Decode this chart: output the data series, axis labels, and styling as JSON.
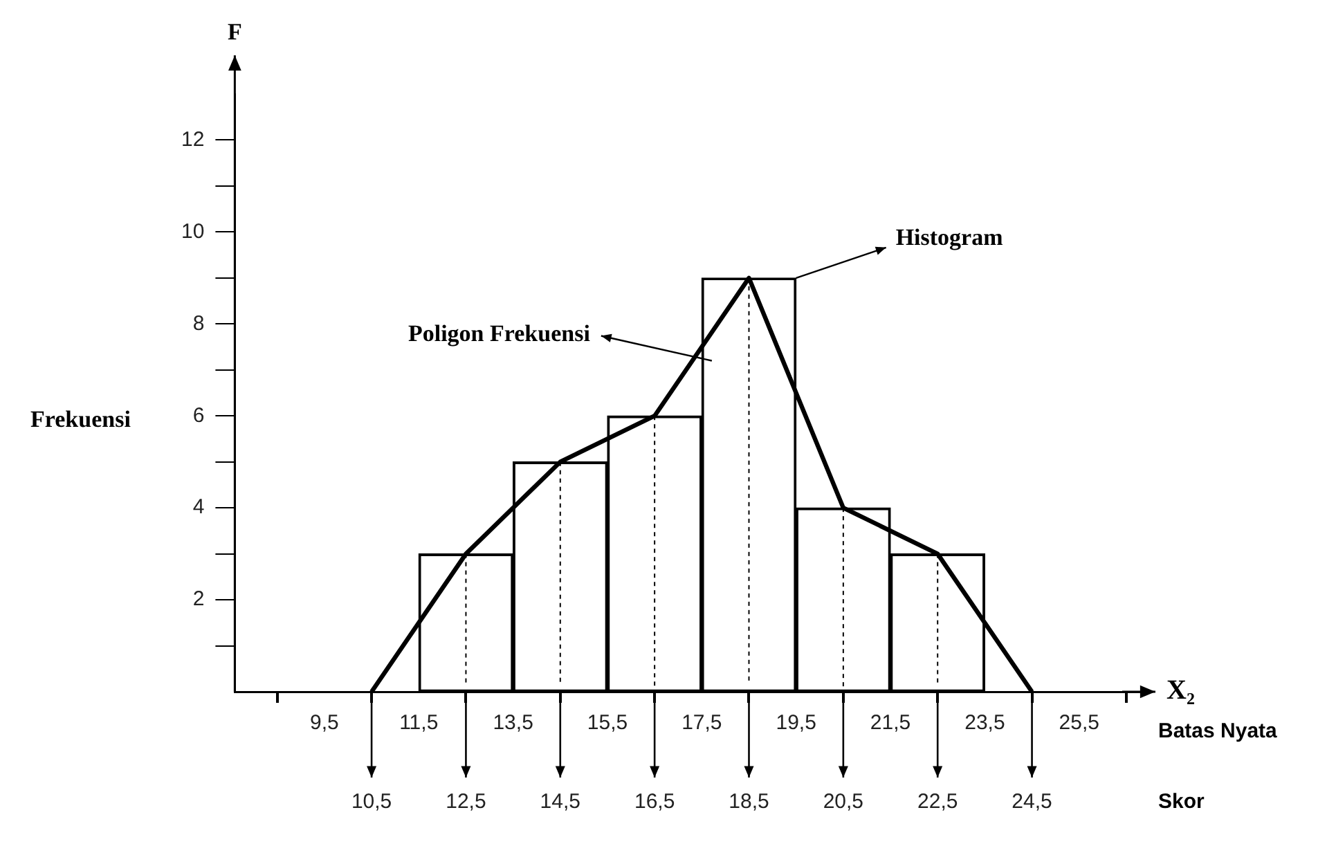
{
  "chart_data": {
    "type": "bar",
    "ylabel": "Frekuensi",
    "xlabel": "X₂",
    "annotations": [
      "F",
      "Batas Nyata",
      "Skor",
      {
        "text": "Histogram",
        "x": 19.5,
        "y": 9
      },
      {
        "text": "10,5",
        "x": 10.5,
        "y": 0
      },
      {
        "text": "12,5",
        "x": 12.5,
        "y": 0
      },
      {
        "text": "14,5",
        "x": 14.5,
        "y": 0
      },
      {
        "text": "16,5",
        "x": 16.5,
        "y": 0
      },
      {
        "text": "18,5",
        "x": 18.5,
        "y": 0
      },
      {
        "text": "20,5",
        "x": 20.5,
        "y": 0
      },
      {
        "text": "22,5",
        "x": 22.5,
        "y": 0
      },
      {
        "text": "24,5",
        "x": 24.5,
        "y": 0
      }
    ],
    "series": [
      {
        "color": "#000000",
        "x": [
          12.5,
          14.5,
          16.5,
          18.5,
          20.5,
          22.5
        ],
        "values": [
          3,
          5,
          6,
          9,
          4,
          3
        ]
      },
      {
        "type": "line",
        "name": "Poligon Frekuensi",
        "color": "#000000",
        "x": [
          10.5,
          12.5,
          14.5,
          16.5,
          18.5,
          20.5,
          22.5,
          24.5
        ],
        "values": [
          0,
          3,
          5,
          6,
          9,
          4,
          3,
          0
        ]
      }
    ],
    "xlim": [
      7.6,
      27
    ],
    "xticks": [
      {
        "value": 9.5,
        "label": "9,5"
      },
      {
        "value": 11.5,
        "label": "11,5"
      },
      {
        "value": 13.5,
        "label": "13,5"
      },
      {
        "value": 15.5,
        "label": "15,5"
      },
      {
        "value": 17.5,
        "label": "17,5"
      },
      {
        "value": 19.5,
        "label": "19,5"
      },
      {
        "value": 21.5,
        "label": "21,5"
      },
      {
        "value": 23.5,
        "label": "23,5"
      },
      {
        "value": 25.5,
        "label": "25,5"
      }
    ],
    "ylim": [
      0,
      13
    ],
    "yticks": [
      {
        "value": 1,
        "label": null
      },
      2,
      {
        "value": 3,
        "label": null
      },
      4,
      {
        "value": 5,
        "label": null
      },
      6,
      {
        "value": 7,
        "label": null
      },
      8,
      {
        "value": 9,
        "label": null
      },
      10,
      {
        "value": 11,
        "label": null
      },
      12
    ],
    "marker": "none",
    "grid": false
  }
}
